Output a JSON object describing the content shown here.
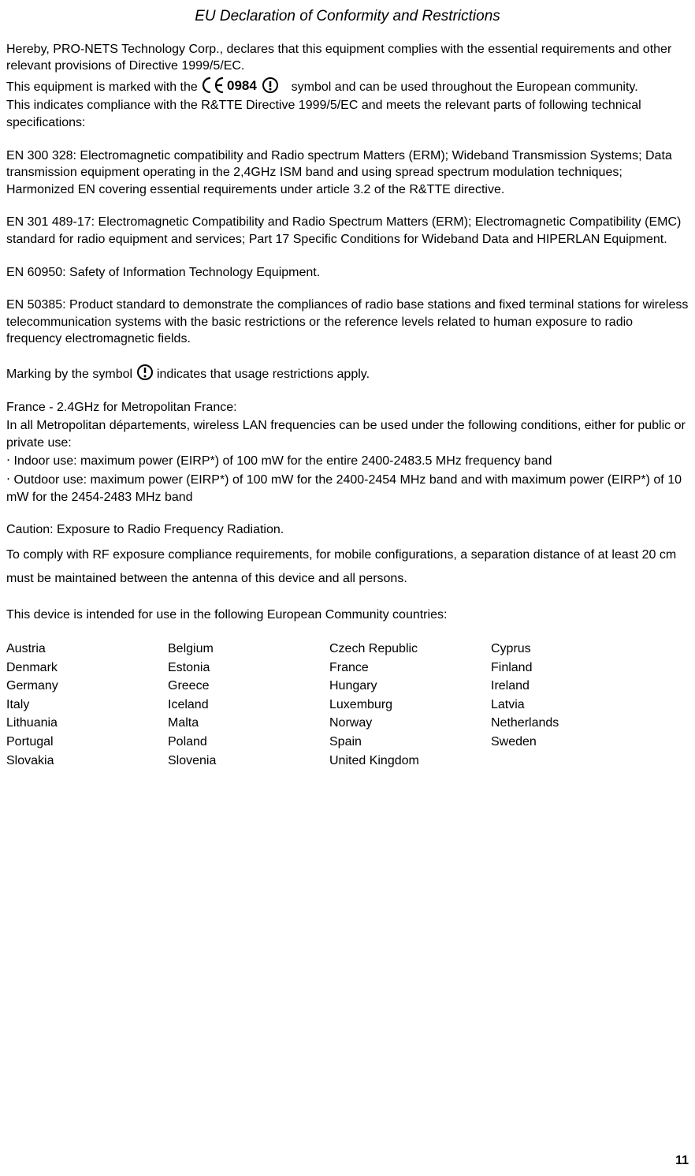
{
  "title": "EU Declaration of Conformity and Restrictions",
  "p1": "Hereby, PRO-NETS Technology Corp., declares that this equipment complies with the essential requirements and other relevant provisions of Directive 1999/5/EC.",
  "p2a": "This equipment is marked with the ",
  "ce_text": "0984",
  "p2b": " symbol and can be used throughout the European community.",
  "p3": "This indicates compliance with the R&TTE Directive 1999/5/EC and meets the relevant parts of following technical specifications:",
  "p4": "EN 300 328: Electromagnetic compatibility and Radio spectrum Matters (ERM); Wideband Transmission Systems; Data transmission equipment operating in the 2,4GHz ISM band and using spread spectrum modulation techniques; Harmonized EN covering essential requirements under article 3.2 of the R&TTE directive.",
  "p5": "EN 301 489-17: Electromagnetic Compatibility and Radio Spectrum Matters (ERM); Electromagnetic Compatibility (EMC) standard for radio equipment and services; Part 17 Specific Conditions for Wideband Data and HIPERLAN Equipment.",
  "p6": "EN 60950: Safety of Information Technology Equipment.",
  "p7": "EN 50385: Product standard to demonstrate the compliances of radio base stations and fixed terminal stations for wireless telecommunication systems with the basic restrictions or the reference levels related to human exposure to radio frequency electromagnetic fields.",
  "p8a": "Marking by the symbol ",
  "p8b": " indicates that usage restrictions apply.",
  "p9": "France - 2.4GHz for Metropolitan France:",
  "p10": "In all Metropolitan départements, wireless LAN frequencies can be used under the following conditions, either for public or private use:",
  "p11": "‧ Indoor use: maximum power (EIRP*) of 100 mW for the entire 2400-2483.5 MHz frequency band",
  "p12": "‧ Outdoor use: maximum power (EIRP*) of 100 mW for the 2400-2454 MHz band and with maximum power (EIRP*) of 10 mW for the 2454-2483 MHz band",
  "p13": "Caution: Exposure to Radio Frequency Radiation.",
  "p14": "To comply with RF exposure compliance requirements, for mobile configurations, a separation distance of at least 20 cm must be maintained between the antenna of this device and all persons.",
  "p15": "This device is intended for use in the following European Community countries:",
  "countries": {
    "rows": [
      [
        "Austria",
        "Belgium",
        "Czech Republic",
        "Cyprus"
      ],
      [
        "Denmark",
        "Estonia",
        "France",
        "Finland"
      ],
      [
        "Germany",
        "Greece",
        "Hungary",
        "Ireland"
      ],
      [
        "Italy",
        "Iceland",
        "Luxemburg",
        "Latvia"
      ],
      [
        "Lithuania",
        "Malta",
        "Norway",
        "Netherlands"
      ],
      [
        "Portugal",
        "Poland",
        "Spain",
        "Sweden"
      ],
      [
        "Slovakia",
        "Slovenia",
        "United Kingdom",
        ""
      ]
    ]
  },
  "page_number": "11"
}
